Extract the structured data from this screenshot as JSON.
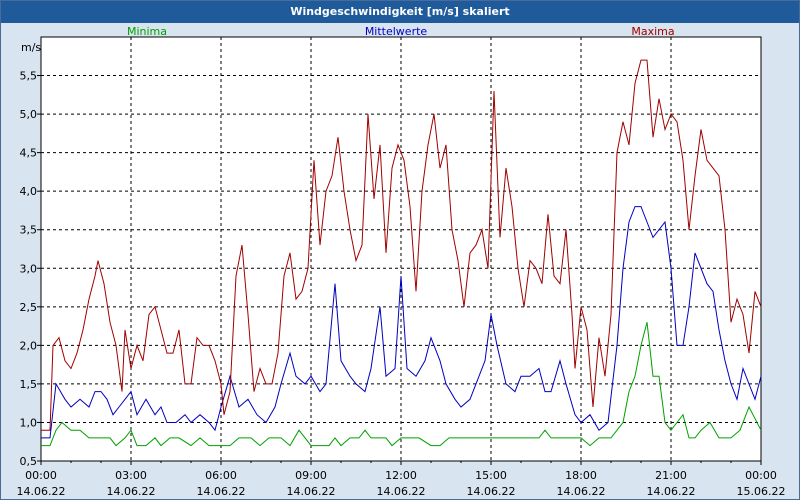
{
  "window": {
    "title": "Windgeschwindigkeit [m/s] skaliert"
  },
  "chart_data": {
    "type": "line",
    "title": "Windgeschwindigkeit [m/s] skaliert",
    "ylabel": "m/s",
    "xlabel": "",
    "ylim": [
      0.5,
      6.0
    ],
    "xlim_hours": [
      0,
      24
    ],
    "grid": true,
    "legend_placement": "top",
    "yticks": [
      "0,5",
      "1,0",
      "1,5",
      "2,0",
      "2,5",
      "3,0",
      "3,5",
      "4,0",
      "4,5",
      "5,0",
      "5,5"
    ],
    "ytick_values": [
      0.5,
      1.0,
      1.5,
      2.0,
      2.5,
      3.0,
      3.5,
      4.0,
      4.5,
      5.0,
      5.5
    ],
    "xticks": [
      {
        "time": "00:00",
        "date": "14.06.22"
      },
      {
        "time": "03:00",
        "date": "14.06.22"
      },
      {
        "time": "06:00",
        "date": "14.06.22"
      },
      {
        "time": "09:00",
        "date": "14.06.22"
      },
      {
        "time": "12:00",
        "date": "14.06.22"
      },
      {
        "time": "15:00",
        "date": "14.06.22"
      },
      {
        "time": "18:00",
        "date": "14.06.22"
      },
      {
        "time": "21:00",
        "date": "14.06.22"
      },
      {
        "time": "00:00",
        "date": "15.06.22"
      }
    ],
    "series": [
      {
        "name": "Minima",
        "color": "#00a000",
        "points": [
          [
            0.0,
            0.7
          ],
          [
            0.3,
            0.7
          ],
          [
            0.5,
            0.9
          ],
          [
            0.7,
            1.0
          ],
          [
            1.0,
            0.9
          ],
          [
            1.3,
            0.9
          ],
          [
            1.6,
            0.8
          ],
          [
            2.0,
            0.8
          ],
          [
            2.3,
            0.8
          ],
          [
            2.5,
            0.7
          ],
          [
            2.8,
            0.8
          ],
          [
            3.0,
            0.9
          ],
          [
            3.2,
            0.7
          ],
          [
            3.5,
            0.7
          ],
          [
            3.8,
            0.8
          ],
          [
            4.0,
            0.7
          ],
          [
            4.3,
            0.8
          ],
          [
            4.6,
            0.8
          ],
          [
            5.0,
            0.7
          ],
          [
            5.3,
            0.8
          ],
          [
            5.6,
            0.7
          ],
          [
            6.0,
            0.7
          ],
          [
            6.3,
            0.7
          ],
          [
            6.6,
            0.8
          ],
          [
            7.0,
            0.8
          ],
          [
            7.3,
            0.7
          ],
          [
            7.6,
            0.8
          ],
          [
            8.0,
            0.8
          ],
          [
            8.3,
            0.7
          ],
          [
            8.6,
            0.9
          ],
          [
            9.0,
            0.7
          ],
          [
            9.3,
            0.7
          ],
          [
            9.6,
            0.7
          ],
          [
            9.8,
            0.8
          ],
          [
            10.0,
            0.7
          ],
          [
            10.3,
            0.8
          ],
          [
            10.6,
            0.8
          ],
          [
            10.8,
            0.9
          ],
          [
            11.0,
            0.8
          ],
          [
            11.3,
            0.8
          ],
          [
            11.5,
            0.8
          ],
          [
            11.7,
            0.7
          ],
          [
            12.0,
            0.8
          ],
          [
            12.3,
            0.8
          ],
          [
            12.6,
            0.8
          ],
          [
            13.0,
            0.7
          ],
          [
            13.3,
            0.7
          ],
          [
            13.6,
            0.8
          ],
          [
            14.0,
            0.8
          ],
          [
            14.3,
            0.8
          ],
          [
            14.6,
            0.8
          ],
          [
            15.0,
            0.8
          ],
          [
            15.3,
            0.8
          ],
          [
            15.6,
            0.8
          ],
          [
            16.0,
            0.8
          ],
          [
            16.3,
            0.8
          ],
          [
            16.6,
            0.8
          ],
          [
            16.8,
            0.9
          ],
          [
            17.0,
            0.8
          ],
          [
            17.3,
            0.8
          ],
          [
            17.6,
            0.8
          ],
          [
            18.0,
            0.8
          ],
          [
            18.3,
            0.7
          ],
          [
            18.6,
            0.8
          ],
          [
            19.0,
            0.8
          ],
          [
            19.2,
            0.9
          ],
          [
            19.4,
            1.0
          ],
          [
            19.6,
            1.4
          ],
          [
            19.8,
            1.6
          ],
          [
            20.0,
            2.0
          ],
          [
            20.2,
            2.3
          ],
          [
            20.4,
            1.6
          ],
          [
            20.6,
            1.6
          ],
          [
            20.8,
            1.0
          ],
          [
            21.0,
            0.9
          ],
          [
            21.2,
            1.0
          ],
          [
            21.4,
            1.1
          ],
          [
            21.6,
            0.8
          ],
          [
            21.8,
            0.8
          ],
          [
            22.0,
            0.9
          ],
          [
            22.3,
            1.0
          ],
          [
            22.6,
            0.8
          ],
          [
            23.0,
            0.8
          ],
          [
            23.3,
            0.9
          ],
          [
            23.6,
            1.2
          ],
          [
            24.0,
            0.9
          ]
        ]
      },
      {
        "name": "Mittelwerte",
        "color": "#0000c0",
        "points": [
          [
            0.0,
            0.8
          ],
          [
            0.3,
            0.8
          ],
          [
            0.5,
            1.5
          ],
          [
            0.8,
            1.3
          ],
          [
            1.0,
            1.2
          ],
          [
            1.3,
            1.3
          ],
          [
            1.6,
            1.2
          ],
          [
            1.8,
            1.4
          ],
          [
            2.0,
            1.4
          ],
          [
            2.2,
            1.3
          ],
          [
            2.4,
            1.1
          ],
          [
            2.6,
            1.2
          ],
          [
            2.8,
            1.3
          ],
          [
            3.0,
            1.4
          ],
          [
            3.2,
            1.1
          ],
          [
            3.5,
            1.3
          ],
          [
            3.8,
            1.1
          ],
          [
            4.0,
            1.2
          ],
          [
            4.2,
            1.0
          ],
          [
            4.5,
            1.0
          ],
          [
            4.8,
            1.1
          ],
          [
            5.0,
            1.0
          ],
          [
            5.3,
            1.1
          ],
          [
            5.6,
            1.0
          ],
          [
            5.8,
            0.9
          ],
          [
            6.0,
            1.2
          ],
          [
            6.3,
            1.6
          ],
          [
            6.6,
            1.2
          ],
          [
            6.9,
            1.3
          ],
          [
            7.2,
            1.1
          ],
          [
            7.5,
            1.0
          ],
          [
            7.8,
            1.2
          ],
          [
            8.0,
            1.5
          ],
          [
            8.3,
            1.9
          ],
          [
            8.5,
            1.6
          ],
          [
            8.8,
            1.5
          ],
          [
            9.0,
            1.6
          ],
          [
            9.3,
            1.4
          ],
          [
            9.5,
            1.5
          ],
          [
            9.8,
            2.8
          ],
          [
            10.0,
            1.8
          ],
          [
            10.3,
            1.6
          ],
          [
            10.5,
            1.5
          ],
          [
            10.8,
            1.4
          ],
          [
            11.0,
            1.7
          ],
          [
            11.3,
            2.5
          ],
          [
            11.5,
            1.6
          ],
          [
            11.8,
            1.7
          ],
          [
            12.0,
            2.9
          ],
          [
            12.2,
            1.7
          ],
          [
            12.5,
            1.6
          ],
          [
            12.8,
            1.8
          ],
          [
            13.0,
            2.1
          ],
          [
            13.3,
            1.8
          ],
          [
            13.5,
            1.5
          ],
          [
            13.8,
            1.3
          ],
          [
            14.0,
            1.2
          ],
          [
            14.3,
            1.3
          ],
          [
            14.6,
            1.6
          ],
          [
            14.8,
            1.8
          ],
          [
            15.0,
            2.4
          ],
          [
            15.2,
            2.0
          ],
          [
            15.5,
            1.5
          ],
          [
            15.8,
            1.4
          ],
          [
            16.0,
            1.6
          ],
          [
            16.3,
            1.6
          ],
          [
            16.6,
            1.7
          ],
          [
            16.8,
            1.4
          ],
          [
            17.0,
            1.4
          ],
          [
            17.3,
            1.8
          ],
          [
            17.5,
            1.5
          ],
          [
            17.8,
            1.1
          ],
          [
            18.0,
            1.0
          ],
          [
            18.3,
            1.1
          ],
          [
            18.6,
            0.9
          ],
          [
            18.9,
            1.0
          ],
          [
            19.2,
            2.0
          ],
          [
            19.4,
            3.0
          ],
          [
            19.6,
            3.6
          ],
          [
            19.8,
            3.8
          ],
          [
            20.0,
            3.8
          ],
          [
            20.2,
            3.6
          ],
          [
            20.4,
            3.4
          ],
          [
            20.6,
            3.5
          ],
          [
            20.8,
            3.6
          ],
          [
            21.0,
            3.0
          ],
          [
            21.2,
            2.0
          ],
          [
            21.4,
            2.0
          ],
          [
            21.6,
            2.5
          ],
          [
            21.8,
            3.2
          ],
          [
            22.0,
            3.0
          ],
          [
            22.2,
            2.8
          ],
          [
            22.4,
            2.7
          ],
          [
            22.6,
            2.2
          ],
          [
            22.8,
            1.8
          ],
          [
            23.0,
            1.5
          ],
          [
            23.2,
            1.3
          ],
          [
            23.4,
            1.7
          ],
          [
            23.6,
            1.5
          ],
          [
            23.8,
            1.3
          ],
          [
            24.0,
            1.6
          ]
        ]
      },
      {
        "name": "Maxima",
        "color": "#a00000",
        "points": [
          [
            0.0,
            0.9
          ],
          [
            0.3,
            0.9
          ],
          [
            0.4,
            2.0
          ],
          [
            0.6,
            2.1
          ],
          [
            0.8,
            1.8
          ],
          [
            1.0,
            1.7
          ],
          [
            1.2,
            1.9
          ],
          [
            1.4,
            2.2
          ],
          [
            1.6,
            2.6
          ],
          [
            1.8,
            2.9
          ],
          [
            1.9,
            3.1
          ],
          [
            2.1,
            2.8
          ],
          [
            2.3,
            2.3
          ],
          [
            2.5,
            2.0
          ],
          [
            2.7,
            1.4
          ],
          [
            2.8,
            2.2
          ],
          [
            3.0,
            1.7
          ],
          [
            3.2,
            2.0
          ],
          [
            3.4,
            1.8
          ],
          [
            3.6,
            2.4
          ],
          [
            3.8,
            2.5
          ],
          [
            4.0,
            2.2
          ],
          [
            4.2,
            1.9
          ],
          [
            4.4,
            1.9
          ],
          [
            4.6,
            2.2
          ],
          [
            4.8,
            1.5
          ],
          [
            5.0,
            1.5
          ],
          [
            5.2,
            2.1
          ],
          [
            5.4,
            2.0
          ],
          [
            5.6,
            2.0
          ],
          [
            5.8,
            1.8
          ],
          [
            6.0,
            1.5
          ],
          [
            6.1,
            1.1
          ],
          [
            6.3,
            1.4
          ],
          [
            6.5,
            2.9
          ],
          [
            6.7,
            3.3
          ],
          [
            6.9,
            2.4
          ],
          [
            7.1,
            1.4
          ],
          [
            7.3,
            1.7
          ],
          [
            7.5,
            1.5
          ],
          [
            7.7,
            1.5
          ],
          [
            7.9,
            1.9
          ],
          [
            8.1,
            2.9
          ],
          [
            8.3,
            3.2
          ],
          [
            8.5,
            2.6
          ],
          [
            8.7,
            2.7
          ],
          [
            8.9,
            3.0
          ],
          [
            9.1,
            4.4
          ],
          [
            9.3,
            3.3
          ],
          [
            9.5,
            4.0
          ],
          [
            9.7,
            4.2
          ],
          [
            9.9,
            4.7
          ],
          [
            10.1,
            4.0
          ],
          [
            10.3,
            3.5
          ],
          [
            10.5,
            3.1
          ],
          [
            10.7,
            3.3
          ],
          [
            10.9,
            5.0
          ],
          [
            11.1,
            3.9
          ],
          [
            11.3,
            4.6
          ],
          [
            11.5,
            3.2
          ],
          [
            11.7,
            4.3
          ],
          [
            11.9,
            4.6
          ],
          [
            12.1,
            4.4
          ],
          [
            12.3,
            3.8
          ],
          [
            12.5,
            2.7
          ],
          [
            12.7,
            4.0
          ],
          [
            12.9,
            4.6
          ],
          [
            13.1,
            5.0
          ],
          [
            13.3,
            4.3
          ],
          [
            13.5,
            4.6
          ],
          [
            13.7,
            3.5
          ],
          [
            13.9,
            3.1
          ],
          [
            14.1,
            2.5
          ],
          [
            14.3,
            3.2
          ],
          [
            14.5,
            3.3
          ],
          [
            14.7,
            3.5
          ],
          [
            14.9,
            3.0
          ],
          [
            15.1,
            5.3
          ],
          [
            15.3,
            3.4
          ],
          [
            15.5,
            4.3
          ],
          [
            15.7,
            3.8
          ],
          [
            15.9,
            3.0
          ],
          [
            16.1,
            2.5
          ],
          [
            16.3,
            3.1
          ],
          [
            16.5,
            3.0
          ],
          [
            16.7,
            2.8
          ],
          [
            16.9,
            3.7
          ],
          [
            17.1,
            2.9
          ],
          [
            17.3,
            2.8
          ],
          [
            17.5,
            3.5
          ],
          [
            17.7,
            2.4
          ],
          [
            17.8,
            1.7
          ],
          [
            18.0,
            2.5
          ],
          [
            18.2,
            2.2
          ],
          [
            18.4,
            1.2
          ],
          [
            18.6,
            2.1
          ],
          [
            18.8,
            1.6
          ],
          [
            19.0,
            2.4
          ],
          [
            19.2,
            4.5
          ],
          [
            19.4,
            4.9
          ],
          [
            19.6,
            4.6
          ],
          [
            19.8,
            5.4
          ],
          [
            20.0,
            5.7
          ],
          [
            20.2,
            5.7
          ],
          [
            20.4,
            4.7
          ],
          [
            20.6,
            5.2
          ],
          [
            20.8,
            4.8
          ],
          [
            21.0,
            5.0
          ],
          [
            21.2,
            4.9
          ],
          [
            21.4,
            4.4
          ],
          [
            21.6,
            3.5
          ],
          [
            21.8,
            4.2
          ],
          [
            22.0,
            4.8
          ],
          [
            22.2,
            4.4
          ],
          [
            22.4,
            4.3
          ],
          [
            22.6,
            4.2
          ],
          [
            22.8,
            3.5
          ],
          [
            23.0,
            2.3
          ],
          [
            23.2,
            2.6
          ],
          [
            23.4,
            2.4
          ],
          [
            23.6,
            1.9
          ],
          [
            23.8,
            2.7
          ],
          [
            24.0,
            2.5
          ]
        ]
      }
    ]
  }
}
